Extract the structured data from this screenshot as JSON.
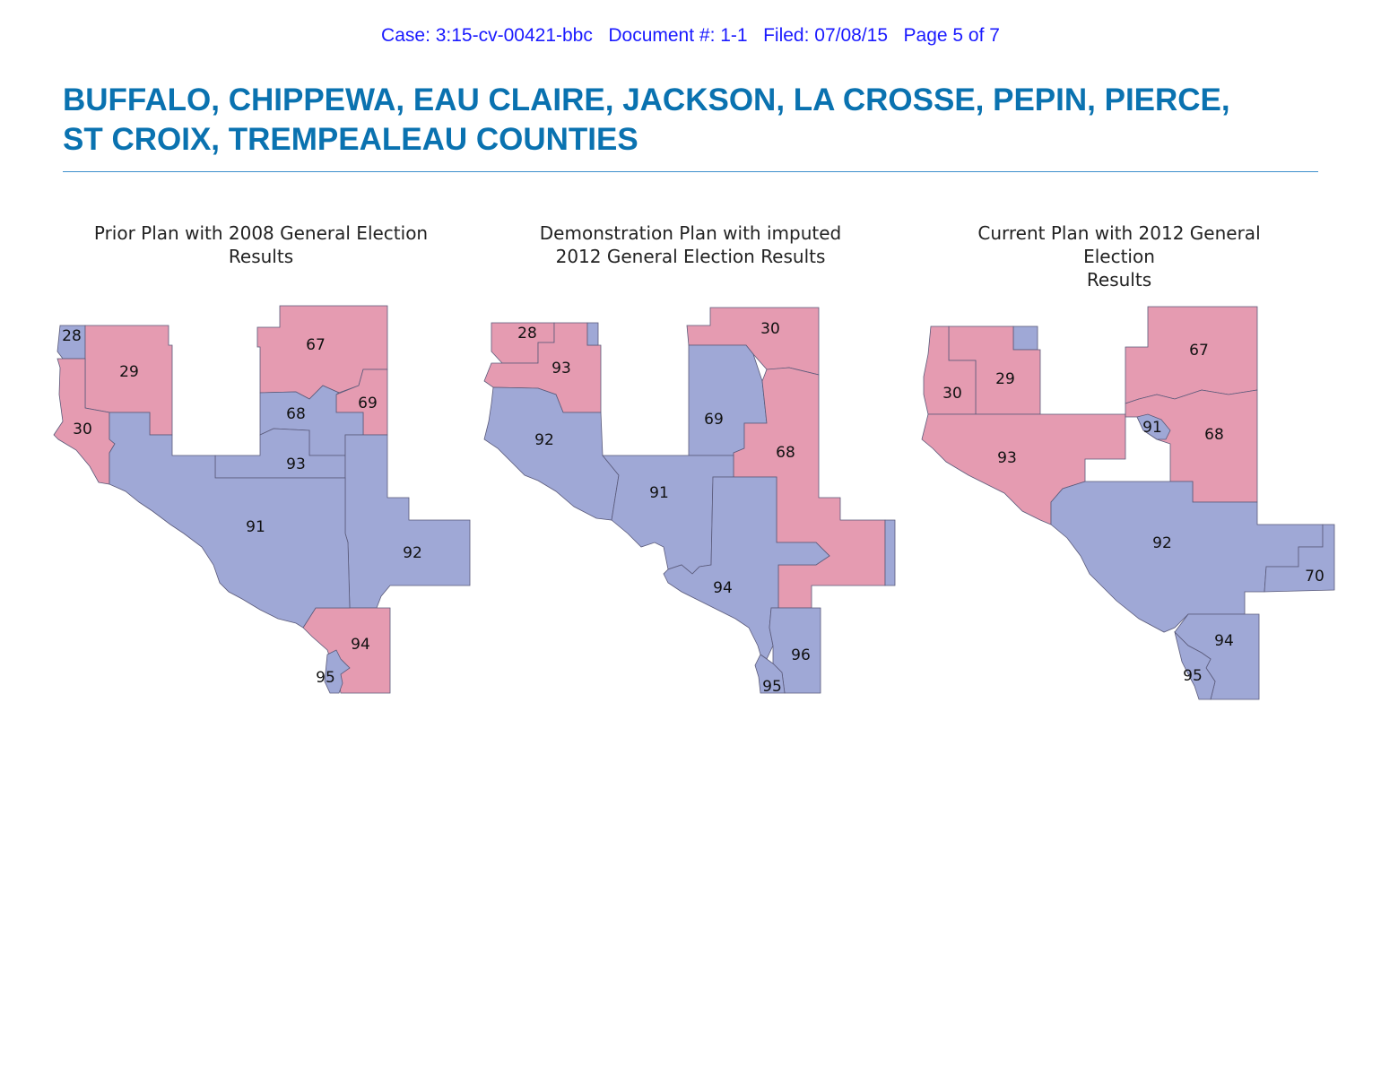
{
  "header": {
    "case_line": "Case: 3:15-cv-00421-bbc   Document #: 1-1   Filed: 07/08/15   Page 5 of 7"
  },
  "title": {
    "line1": "BUFFALO, CHIPPEWA, EAU CLAIRE, JACKSON, LA CROSSE, PEPIN, PIERCE,",
    "line2": "ST CROIX, TREMPEALEAU COUNTIES"
  },
  "colors": {
    "title": "#0a72b0",
    "header": "#1a1aff",
    "democratic_fill": "#9fa8d6",
    "republican_fill": "#e59bb1"
  },
  "maps": [
    {
      "caption_line1": "Prior Plan with 2008 General Election",
      "caption_line2": "Results",
      "districts": [
        {
          "number": "28",
          "party_color": "democratic"
        },
        {
          "number": "29",
          "party_color": "republican"
        },
        {
          "number": "30",
          "party_color": "republican"
        },
        {
          "number": "67",
          "party_color": "republican"
        },
        {
          "number": "68",
          "party_color": "democratic"
        },
        {
          "number": "69",
          "party_color": "republican"
        },
        {
          "number": "91",
          "party_color": "democratic"
        },
        {
          "number": "92",
          "party_color": "democratic"
        },
        {
          "number": "93",
          "party_color": "democratic"
        },
        {
          "number": "94",
          "party_color": "republican"
        },
        {
          "number": "95",
          "party_color": "democratic"
        }
      ]
    },
    {
      "caption_line1": "Demonstration Plan with imputed",
      "caption_line2": "2012 General Election Results",
      "districts": [
        {
          "number": "28",
          "party_color": "republican"
        },
        {
          "number": "30",
          "party_color": "republican"
        },
        {
          "number": "68",
          "party_color": "republican"
        },
        {
          "number": "69",
          "party_color": "democratic"
        },
        {
          "number": "91",
          "party_color": "democratic"
        },
        {
          "number": "92",
          "party_color": "democratic"
        },
        {
          "number": "93",
          "party_color": "republican"
        },
        {
          "number": "94",
          "party_color": "democratic"
        },
        {
          "number": "95",
          "party_color": "democratic"
        },
        {
          "number": "96",
          "party_color": "democratic"
        }
      ]
    },
    {
      "caption_line1": "Current Plan with 2012 General Election",
      "caption_line2": "Results",
      "districts": [
        {
          "number": "29",
          "party_color": "republican"
        },
        {
          "number": "30",
          "party_color": "republican"
        },
        {
          "number": "67",
          "party_color": "republican"
        },
        {
          "number": "68",
          "party_color": "republican"
        },
        {
          "number": "70",
          "party_color": "democratic"
        },
        {
          "number": "91",
          "party_color": "democratic"
        },
        {
          "number": "92",
          "party_color": "democratic"
        },
        {
          "number": "93",
          "party_color": "republican"
        },
        {
          "number": "94",
          "party_color": "democratic"
        },
        {
          "number": "95",
          "party_color": "democratic"
        }
      ]
    }
  ]
}
